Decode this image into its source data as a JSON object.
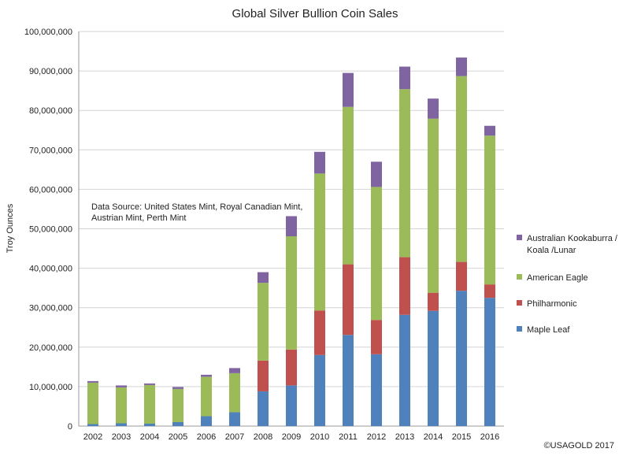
{
  "chart_data": {
    "type": "bar",
    "stacked": true,
    "title": "Global Silver Bullion Coin Sales",
    "xlabel": "",
    "ylabel": "Troy Ounces",
    "ylim": [
      0,
      100000000
    ],
    "yticks": [
      "0",
      "10,000,000",
      "20,000,000",
      "30,000,000",
      "40,000,000",
      "50,000,000",
      "60,000,000",
      "70,000,000",
      "80,000,000",
      "90,000,000",
      "100,000,000"
    ],
    "grid": true,
    "legend_position": "right",
    "categories": [
      "2002",
      "2003",
      "2004",
      "2005",
      "2006",
      "2007",
      "2008",
      "2009",
      "2010",
      "2011",
      "2012",
      "2013",
      "2014",
      "2015",
      "2016"
    ],
    "series": [
      {
        "name": "Maple Leaf",
        "color": "#4f81bd",
        "values": [
          500000,
          700000,
          600000,
          1000000,
          2500000,
          3500000,
          8800000,
          10300000,
          18000000,
          23100000,
          18200000,
          28200000,
          29200000,
          34300000,
          32500000
        ]
      },
      {
        "name": "Philharmonic",
        "color": "#c0504d",
        "values": [
          0,
          0,
          0,
          0,
          0,
          0,
          7800000,
          9100000,
          11300000,
          17900000,
          8700000,
          14600000,
          4600000,
          7300000,
          3400000
        ]
      },
      {
        "name": "American Eagle",
        "color": "#9bbb59",
        "values": [
          10500000,
          9100000,
          9800000,
          8400000,
          10000000,
          9900000,
          19700000,
          28700000,
          34700000,
          39900000,
          33700000,
          42600000,
          44100000,
          47100000,
          37700000
        ]
      },
      {
        "name": "Australian Kookaburra / Koala /Lunar",
        "color": "#8064a2",
        "values": [
          400000,
          500000,
          400000,
          500000,
          500000,
          1300000,
          2700000,
          5100000,
          5500000,
          8600000,
          6400000,
          5700000,
          5100000,
          4700000,
          2500000
        ]
      }
    ],
    "legend_lines": [
      [
        "Australian Kookaburra /",
        "Koala /Lunar"
      ],
      [
        "American Eagle"
      ],
      [
        "Philharmonic"
      ],
      [
        "Maple Leaf"
      ]
    ],
    "annotations": {
      "source_lines": [
        "Data Source: United States Mint, Royal Canadian Mint,",
        "Austrian Mint, Perth Mint"
      ],
      "copyright": "©USAGOLD 2017"
    }
  }
}
